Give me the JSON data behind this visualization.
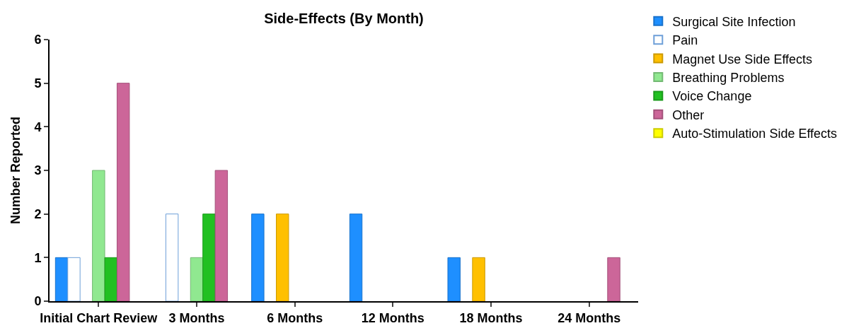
{
  "chart_data": {
    "type": "bar",
    "title": "Side-Effects (By Month)",
    "ylabel": "Number Reported",
    "categories": [
      "Initial Chart Review",
      "3 Months",
      "6 Months",
      "12 Months",
      "18 Months",
      "24 Months"
    ],
    "series": [
      {
        "name": "Surgical Site Infection",
        "color": "#1e8fff",
        "values": [
          1,
          0,
          2,
          2,
          1,
          0
        ]
      },
      {
        "name": "Pain",
        "color": "#ffffff",
        "values": [
          1,
          2,
          0,
          0,
          0,
          0
        ]
      },
      {
        "name": "Magnet Use Side Effects",
        "color": "#ffc000",
        "values": [
          0,
          0,
          2,
          0,
          1,
          0
        ]
      },
      {
        "name": "Breathing Problems",
        "color": "#90e890",
        "values": [
          3,
          1,
          0,
          0,
          0,
          0
        ]
      },
      {
        "name": "Voice Change",
        "color": "#22c022",
        "values": [
          1,
          2,
          0,
          0,
          0,
          0
        ]
      },
      {
        "name": "Other",
        "color": "#cc6699",
        "values": [
          5,
          3,
          0,
          0,
          0,
          1
        ]
      },
      {
        "name": "Auto-Stimulation Side Effects",
        "color": "#ffff00",
        "values": [
          0,
          0,
          0,
          0,
          0,
          0
        ]
      }
    ],
    "ylim": [
      0,
      6
    ],
    "yticks": [
      0,
      1,
      2,
      3,
      4,
      5,
      6
    ],
    "legend": "top right"
  }
}
